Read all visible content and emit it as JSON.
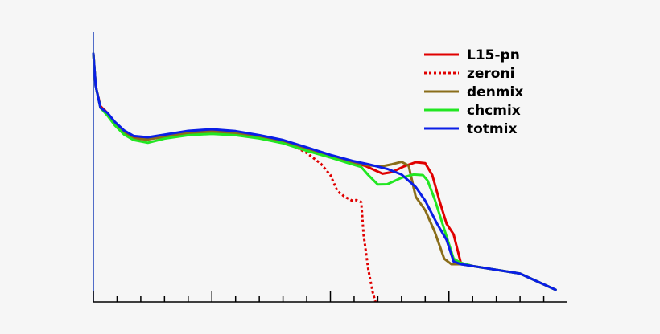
{
  "chart_data": {
    "type": "line",
    "title": "",
    "xlabel": "",
    "ylabel": "",
    "xlim": [
      0,
      20
    ],
    "ylim": [
      0,
      1
    ],
    "grid": false,
    "legend_position": "top-right",
    "x_ticks": {
      "major": [
        0,
        5,
        10,
        15
      ],
      "minor_step": 1
    },
    "series": [
      {
        "name": "L15-pn",
        "color": "#e00000",
        "style": "solid",
        "points": [
          [
            0.0,
            0.92
          ],
          [
            0.1,
            0.8
          ],
          [
            0.3,
            0.725
          ],
          [
            0.6,
            0.7
          ],
          [
            0.9,
            0.665
          ],
          [
            1.3,
            0.628
          ],
          [
            1.7,
            0.608
          ],
          [
            2.3,
            0.604
          ],
          [
            3.0,
            0.613
          ],
          [
            4.0,
            0.627
          ],
          [
            5.0,
            0.633
          ],
          [
            6.0,
            0.627
          ],
          [
            7.0,
            0.613
          ],
          [
            8.0,
            0.597
          ],
          [
            9.0,
            0.57
          ],
          [
            10.0,
            0.543
          ],
          [
            11.0,
            0.517
          ],
          [
            11.5,
            0.503
          ],
          [
            11.9,
            0.487
          ],
          [
            12.2,
            0.475
          ],
          [
            12.6,
            0.481
          ],
          [
            13.1,
            0.502
          ],
          [
            13.6,
            0.518
          ],
          [
            14.0,
            0.514
          ],
          [
            14.3,
            0.47
          ],
          [
            14.6,
            0.375
          ],
          [
            14.9,
            0.29
          ],
          [
            15.2,
            0.25
          ],
          [
            15.5,
            0.145
          ],
          [
            16.0,
            0.133
          ],
          [
            18.0,
            0.105
          ],
          [
            19.5,
            0.045
          ]
        ]
      },
      {
        "name": "zeroni",
        "color": "#e00000",
        "style": "dotted",
        "points": [
          [
            0.0,
            0.92
          ],
          [
            0.1,
            0.8
          ],
          [
            0.3,
            0.725
          ],
          [
            0.6,
            0.7
          ],
          [
            0.9,
            0.665
          ],
          [
            1.3,
            0.628
          ],
          [
            1.7,
            0.608
          ],
          [
            2.3,
            0.604
          ],
          [
            3.0,
            0.613
          ],
          [
            4.0,
            0.627
          ],
          [
            5.0,
            0.633
          ],
          [
            6.0,
            0.627
          ],
          [
            7.0,
            0.613
          ],
          [
            7.6,
            0.603
          ],
          [
            8.3,
            0.585
          ],
          [
            9.0,
            0.552
          ],
          [
            9.6,
            0.512
          ],
          [
            10.0,
            0.47
          ],
          [
            10.3,
            0.41
          ],
          [
            10.6,
            0.39
          ],
          [
            10.9,
            0.376
          ],
          [
            11.1,
            0.377
          ],
          [
            11.3,
            0.37
          ],
          [
            11.4,
            0.25
          ],
          [
            11.6,
            0.12
          ],
          [
            11.8,
            0.03
          ],
          [
            11.9,
            0.0
          ]
        ]
      },
      {
        "name": "denmix",
        "color": "#8a6d1a",
        "style": "solid",
        "points": [
          [
            0.0,
            0.92
          ],
          [
            0.1,
            0.8
          ],
          [
            0.3,
            0.72
          ],
          [
            0.6,
            0.695
          ],
          [
            0.9,
            0.66
          ],
          [
            1.3,
            0.625
          ],
          [
            1.7,
            0.605
          ],
          [
            2.3,
            0.602
          ],
          [
            3.0,
            0.612
          ],
          [
            4.0,
            0.625
          ],
          [
            5.0,
            0.631
          ],
          [
            6.0,
            0.625
          ],
          [
            7.0,
            0.611
          ],
          [
            8.0,
            0.595
          ],
          [
            9.0,
            0.568
          ],
          [
            10.0,
            0.542
          ],
          [
            11.0,
            0.516
          ],
          [
            11.6,
            0.506
          ],
          [
            12.2,
            0.503
          ],
          [
            12.6,
            0.51
          ],
          [
            13.0,
            0.519
          ],
          [
            13.3,
            0.505
          ],
          [
            13.6,
            0.39
          ],
          [
            14.0,
            0.34
          ],
          [
            14.4,
            0.26
          ],
          [
            14.8,
            0.16
          ],
          [
            15.1,
            0.14
          ],
          [
            15.5,
            0.14
          ],
          [
            16.0,
            0.133
          ],
          [
            18.0,
            0.105
          ],
          [
            19.5,
            0.045
          ]
        ]
      },
      {
        "name": "chcmix",
        "color": "#22e622",
        "style": "solid",
        "points": [
          [
            0.0,
            0.92
          ],
          [
            0.1,
            0.8
          ],
          [
            0.3,
            0.72
          ],
          [
            0.6,
            0.69
          ],
          [
            0.9,
            0.655
          ],
          [
            1.3,
            0.62
          ],
          [
            1.7,
            0.6
          ],
          [
            2.3,
            0.59
          ],
          [
            3.0,
            0.605
          ],
          [
            4.0,
            0.618
          ],
          [
            5.0,
            0.623
          ],
          [
            6.0,
            0.618
          ],
          [
            7.0,
            0.606
          ],
          [
            8.0,
            0.588
          ],
          [
            9.0,
            0.56
          ],
          [
            10.0,
            0.535
          ],
          [
            10.8,
            0.513
          ],
          [
            11.3,
            0.5
          ],
          [
            11.6,
            0.47
          ],
          [
            12.0,
            0.435
          ],
          [
            12.4,
            0.436
          ],
          [
            13.0,
            0.46
          ],
          [
            13.5,
            0.472
          ],
          [
            13.9,
            0.47
          ],
          [
            14.1,
            0.45
          ],
          [
            14.4,
            0.38
          ],
          [
            14.8,
            0.27
          ],
          [
            15.2,
            0.16
          ],
          [
            15.5,
            0.145
          ],
          [
            16.0,
            0.133
          ],
          [
            18.0,
            0.105
          ],
          [
            19.5,
            0.045
          ]
        ]
      },
      {
        "name": "totmix",
        "color": "#0a1ee6",
        "style": "solid",
        "points": [
          [
            0.0,
            0.92
          ],
          [
            0.1,
            0.8
          ],
          [
            0.3,
            0.72
          ],
          [
            0.6,
            0.7
          ],
          [
            0.9,
            0.668
          ],
          [
            1.3,
            0.635
          ],
          [
            1.7,
            0.615
          ],
          [
            2.3,
            0.61
          ],
          [
            3.0,
            0.62
          ],
          [
            4.0,
            0.634
          ],
          [
            5.0,
            0.64
          ],
          [
            6.0,
            0.633
          ],
          [
            7.0,
            0.618
          ],
          [
            8.0,
            0.6
          ],
          [
            9.0,
            0.573
          ],
          [
            10.0,
            0.545
          ],
          [
            11.0,
            0.521
          ],
          [
            11.6,
            0.51
          ],
          [
            12.4,
            0.493
          ],
          [
            13.0,
            0.472
          ],
          [
            13.6,
            0.426
          ],
          [
            14.0,
            0.375
          ],
          [
            14.5,
            0.29
          ],
          [
            14.9,
            0.23
          ],
          [
            15.2,
            0.15
          ],
          [
            15.5,
            0.14
          ],
          [
            16.0,
            0.133
          ],
          [
            18.0,
            0.105
          ],
          [
            19.5,
            0.045
          ]
        ]
      }
    ]
  }
}
